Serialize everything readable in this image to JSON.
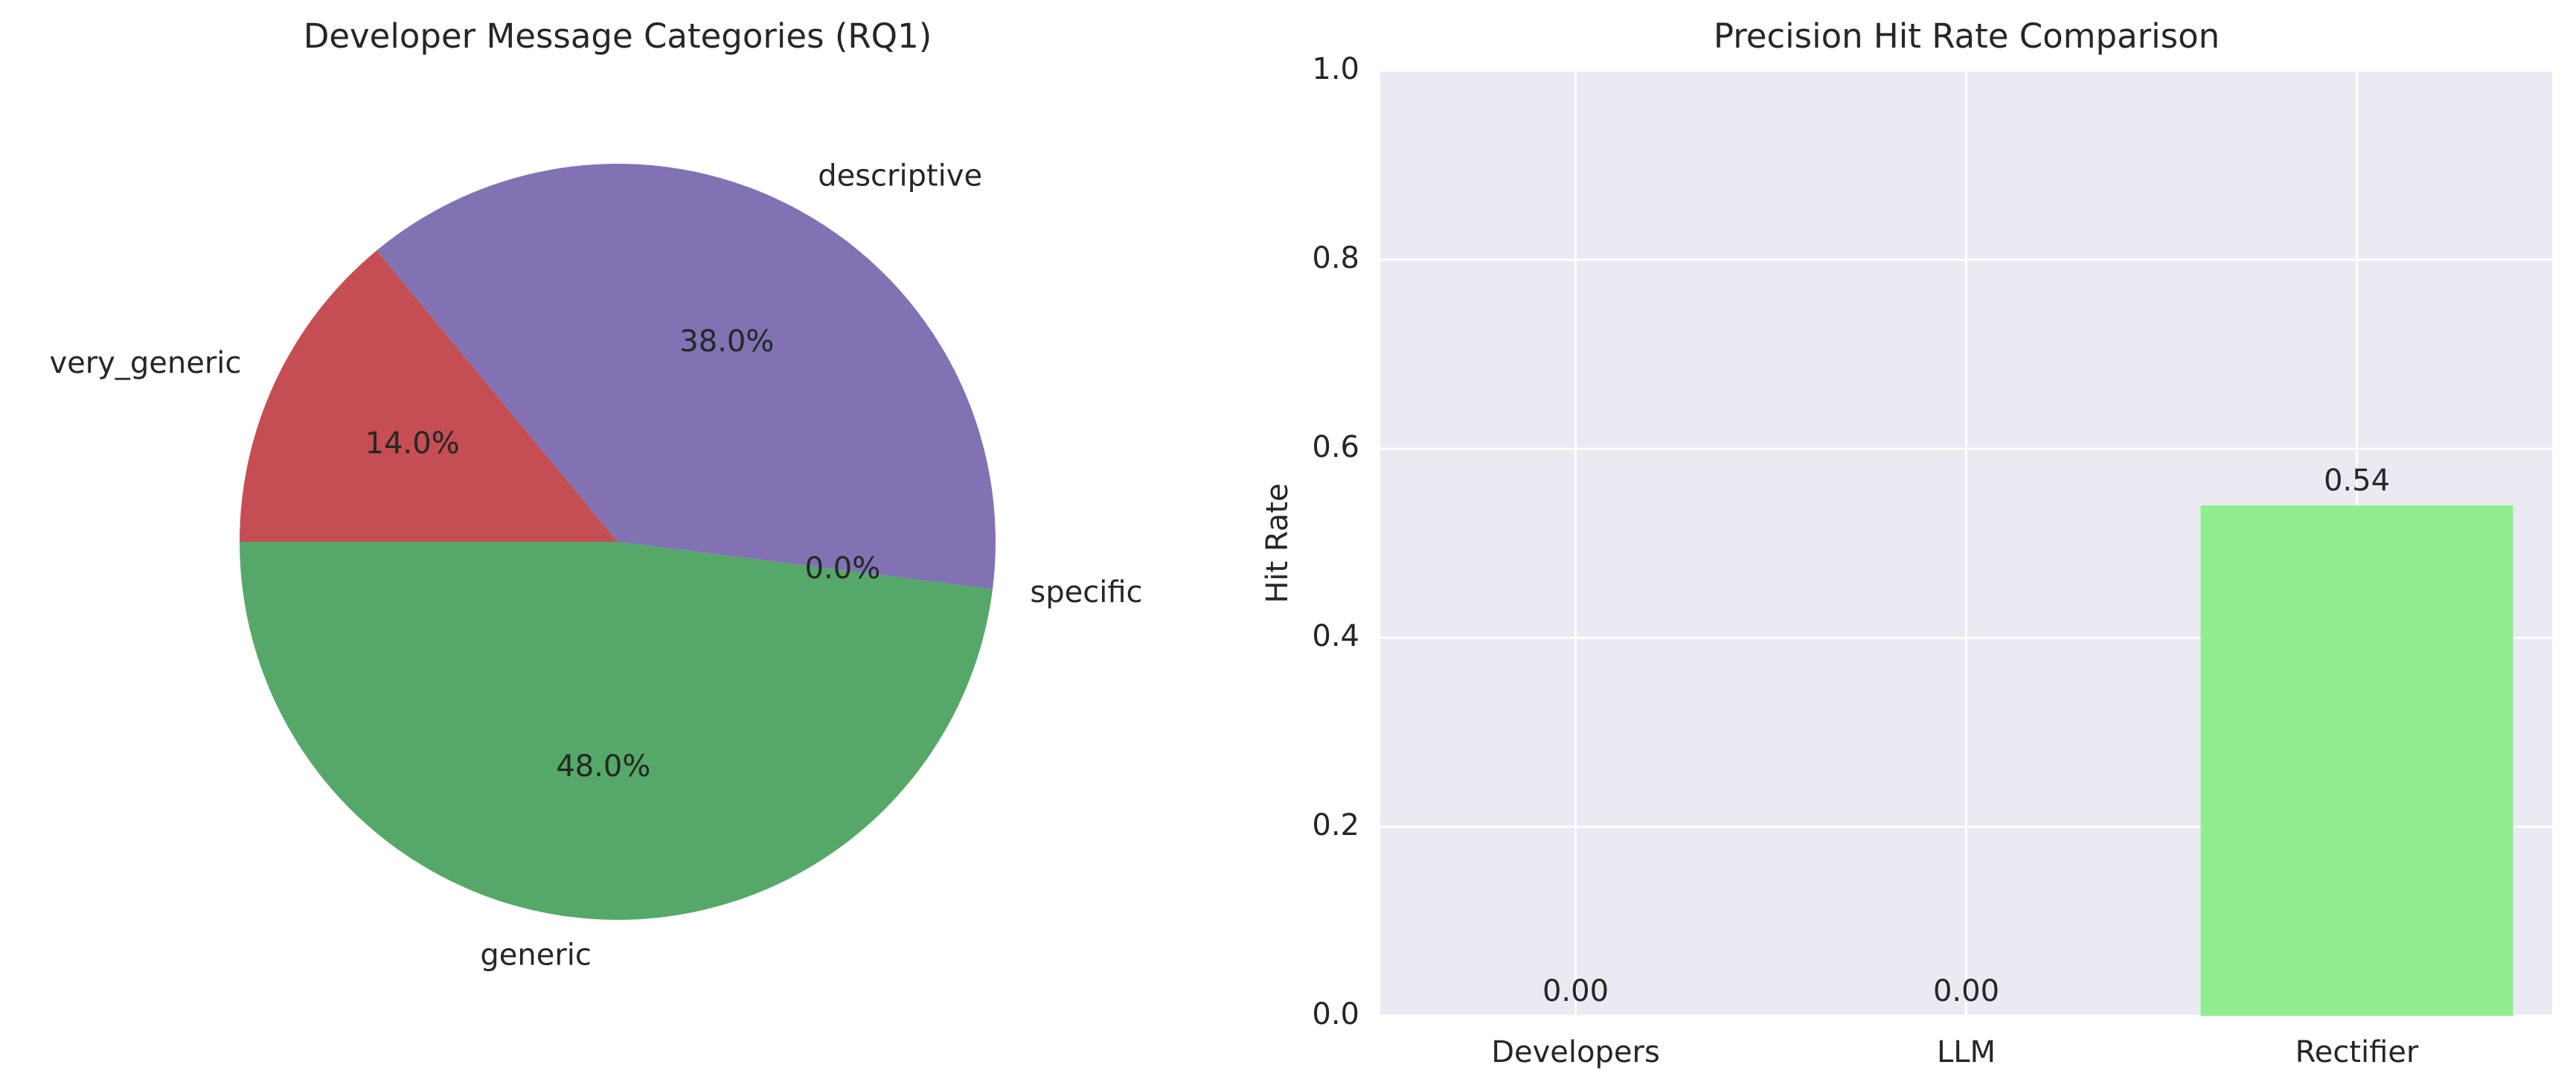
{
  "chart_data": [
    {
      "type": "pie",
      "title": "Developer Message Categories (RQ1)",
      "labels": [
        "generic",
        "specific",
        "descriptive",
        "very_generic"
      ],
      "values": [
        48.0,
        0.0,
        38.0,
        14.0
      ],
      "pct_labels": [
        "48.0%",
        "0.0%",
        "38.0%",
        "14.0%"
      ],
      "colors": [
        "#55a868",
        "#4c72b0",
        "#8172b3",
        "#c44e52"
      ],
      "start_angle_deg": 180,
      "direction": "counterclockwise"
    },
    {
      "type": "bar",
      "title": "Precision Hit Rate Comparison",
      "categories": [
        "Developers",
        "LLM",
        "Rectifier"
      ],
      "values": [
        0.0,
        0.0,
        0.54
      ],
      "value_labels": [
        "0.00",
        "0.00",
        "0.54"
      ],
      "bar_color": "#90ee90",
      "xlabel": "",
      "ylabel": "Hit Rate",
      "ylim": [
        0,
        1.0
      ],
      "yticks": [
        "0.0",
        "0.2",
        "0.4",
        "0.6",
        "0.8",
        "1.0"
      ],
      "grid": true,
      "background": "#eaeaf2"
    }
  ]
}
